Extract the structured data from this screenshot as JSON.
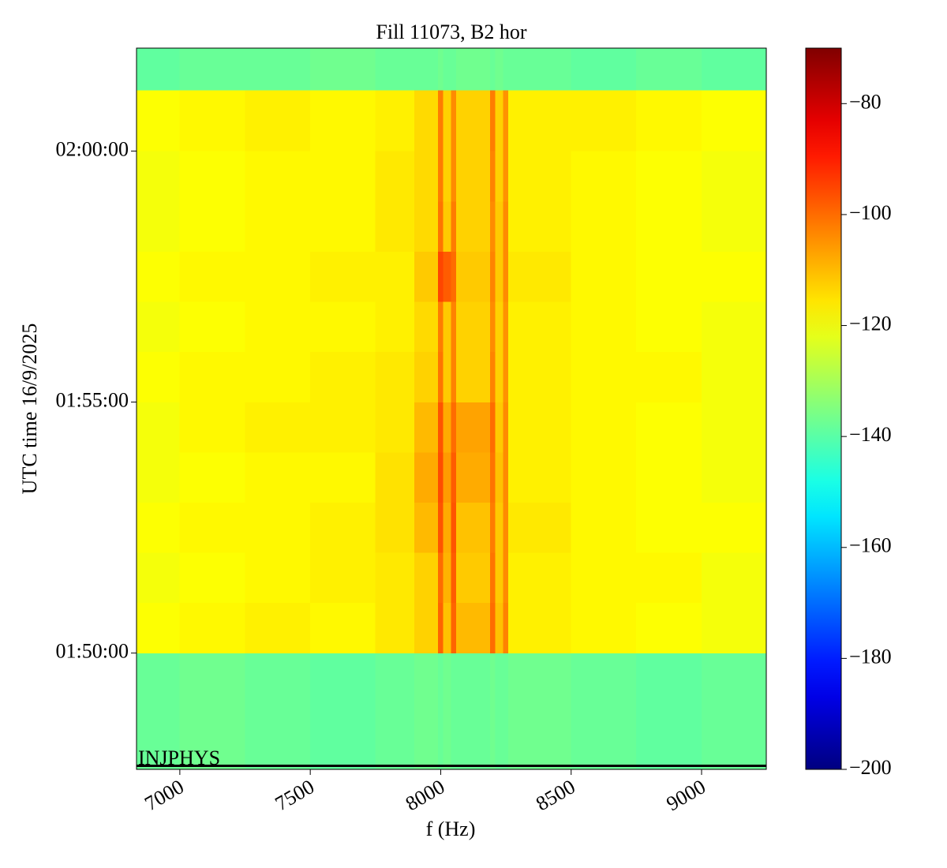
{
  "chart_data": {
    "type": "heatmap",
    "title": "Fill 11073, B2 hor",
    "x_label": "f (Hz)",
    "y_label": "UTC time 16/9/2025",
    "annotation": "INJPHYS",
    "colormap": "jet",
    "xlim": [
      6834,
      9248
    ],
    "xticks": [
      7000,
      7500,
      8000,
      8500,
      9000
    ],
    "ylim": [
      6461,
      7323
    ],
    "yticks": [
      {
        "value": 6600,
        "label": "01:50:00"
      },
      {
        "value": 6900,
        "label": "01:55:00"
      },
      {
        "value": 7200,
        "label": "02:00:00"
      }
    ],
    "zlim": [
      -200,
      -70
    ],
    "zticks": [
      {
        "value": -200,
        "label": "−200"
      },
      {
        "value": -180,
        "label": "−180"
      },
      {
        "value": -160,
        "label": "−160"
      },
      {
        "value": -140,
        "label": "−140"
      },
      {
        "value": -120,
        "label": "−120"
      },
      {
        "value": -100,
        "label": "−100"
      },
      {
        "value": -80,
        "label": "−80"
      }
    ],
    "x_edges": [
      6834,
      7000,
      7250,
      7500,
      7750,
      7900,
      7990,
      8010,
      8040,
      8060,
      8190,
      8210,
      8240,
      8260,
      8500,
      8750,
      9000,
      9248
    ],
    "y_edges": [
      6461,
      6600,
      6660,
      6720,
      6780,
      6840,
      6900,
      6960,
      7020,
      7080,
      7140,
      7200,
      7273,
      7323
    ],
    "z": [
      [
        -138,
        -137,
        -138,
        -139,
        -138,
        -137,
        -138,
        -137,
        -138,
        -138,
        -137,
        -138,
        -138,
        -137,
        -138,
        -139,
        -138
      ],
      [
        -119,
        -118,
        -117,
        -118,
        -116,
        -113,
        -99,
        -111,
        -99,
        -110,
        -100,
        -111,
        -103,
        -117,
        -118,
        -119,
        -120
      ],
      [
        -120,
        -119,
        -118,
        -117,
        -116,
        -113,
        -100,
        -109,
        -98,
        -112,
        -101,
        -112,
        -104,
        -117,
        -118,
        -118,
        -120
      ],
      [
        -119,
        -118,
        -118,
        -117,
        -115,
        -110,
        -97,
        -108,
        -97,
        -111,
        -102,
        -112,
        -104,
        -116,
        -118,
        -119,
        -119
      ],
      [
        -120,
        -119,
        -118,
        -118,
        -115,
        -108,
        -96,
        -106,
        -98,
        -108,
        -101,
        -111,
        -104,
        -117,
        -118,
        -119,
        -120
      ],
      [
        -120,
        -118,
        -117,
        -117,
        -116,
        -110,
        -97,
        -108,
        -100,
        -107,
        -100,
        -112,
        -104,
        -117,
        -118,
        -119,
        -120
      ],
      [
        -119,
        -118,
        -118,
        -117,
        -116,
        -113,
        -101,
        -112,
        -103,
        -113,
        -103,
        -113,
        -105,
        -117,
        -118,
        -118,
        -120
      ],
      [
        -120,
        -119,
        -118,
        -118,
        -117,
        -114,
        -102,
        -112,
        -103,
        -113,
        -104,
        -113,
        -105,
        -117,
        -118,
        -119,
        -120
      ],
      [
        -119,
        -118,
        -118,
        -117,
        -117,
        -112,
        -95,
        -98,
        -100,
        -112,
        -103,
        -112,
        -104,
        -116,
        -118,
        -119,
        -119
      ],
      [
        -120,
        -119,
        -118,
        -118,
        -116,
        -114,
        -101,
        -112,
        -102,
        -113,
        -104,
        -112,
        -104,
        -117,
        -118,
        -119,
        -120
      ],
      [
        -120,
        -119,
        -118,
        -118,
        -116,
        -114,
        -102,
        -113,
        -104,
        -113,
        -103,
        -113,
        -105,
        -117,
        -118,
        -119,
        -120
      ],
      [
        -119,
        -118,
        -117,
        -118,
        -117,
        -114,
        -102,
        -113,
        -104,
        -113,
        -102,
        -113,
        -105,
        -117,
        -117,
        -118,
        -119
      ],
      [
        -139,
        -138,
        -138,
        -137,
        -138,
        -138,
        -137,
        -138,
        -138,
        -137,
        -138,
        -137,
        -138,
        -138,
        -139,
        -138,
        -139
      ]
    ]
  }
}
